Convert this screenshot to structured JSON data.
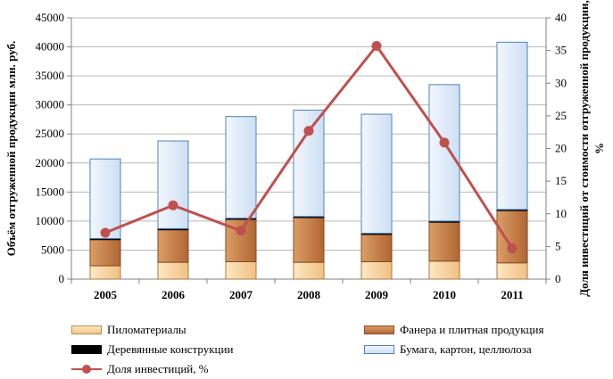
{
  "chart_data": {
    "type": "bar",
    "stacked": true,
    "categories": [
      "2005",
      "2006",
      "2007",
      "2008",
      "2009",
      "2010",
      "2011"
    ],
    "series": [
      {
        "name": "Пиломатериалы",
        "type": "bar",
        "axis": "left",
        "color": "#fad7a0",
        "values": [
          2300,
          2900,
          3000,
          2900,
          3000,
          3100,
          2800
        ]
      },
      {
        "name": "Фанера и плитная продукция",
        "type": "bar",
        "axis": "left",
        "color": "#c8824b",
        "values": [
          4500,
          5600,
          7300,
          7700,
          4700,
          6700,
          9000
        ]
      },
      {
        "name": "Деревянные конструкции",
        "type": "bar",
        "axis": "left",
        "color": "#000000",
        "values": [
          200,
          200,
          200,
          200,
          200,
          200,
          200
        ]
      },
      {
        "name": "Бумага, картон, целлюлоза",
        "type": "bar",
        "axis": "left",
        "color": "#dce9f8",
        "values": [
          13700,
          15100,
          17500,
          18300,
          20500,
          23500,
          28800
        ]
      },
      {
        "name": "Доля инвестиций, %",
        "type": "line",
        "axis": "right",
        "color": "#c0504d",
        "values": [
          7.1,
          11.3,
          7.4,
          22.7,
          35.7,
          20.9,
          4.7
        ]
      }
    ],
    "ylabel": "Объём отгруженной продукции млн. руб.",
    "y2label": "Доля инвестиций от стоимости отгруженной продукции, %",
    "ylim": [
      0,
      45000
    ],
    "y2lim": [
      0,
      40
    ],
    "yticks": [
      "0",
      "5000",
      "10000",
      "15000",
      "20000",
      "25000",
      "30000",
      "35000",
      "40000",
      "45000"
    ],
    "y2ticks": [
      "0",
      "5",
      "10",
      "15",
      "20",
      "25",
      "30",
      "35",
      "40"
    ],
    "grid": true,
    "legend": "bottom"
  }
}
